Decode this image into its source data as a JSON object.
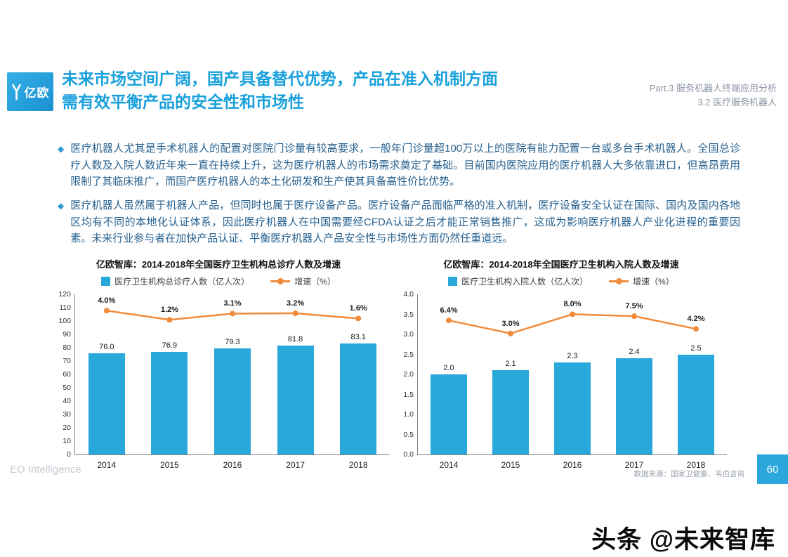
{
  "page": {
    "logo_text": "亿欧",
    "title_line1": "未来市场空间广阔，国产具备替代优势，产品在准入机制方面",
    "title_line2": "需有效平衡产品的安全性和市场性",
    "part_line1": "Part.3 服务机器人终端应用分析",
    "part_line2": "3.2 医疗服务机器人",
    "bullets": [
      "医疗机器人尤其是手术机器人的配置对医院门诊量有较高要求，一般年门诊量超100万以上的医院有能力配置一台或多台手术机器人。全国总诊疗人数及入院人数近年来一直在持续上升，这为医疗机器人的市场需求奠定了基础。目前国内医院应用的医疗机器人大多依靠进口，但高昂费用限制了其临床推广，而国产医疗机器人的本土化研发和生产使其具备高性价比优势。",
      "医疗机器人虽然属于机器人产品，但同时也属于医疗设备产品。医疗设备产品面临严格的准入机制，医疗设备安全认证在国际、国内及国内各地区均有不同的本地化认证体系，因此医疗机器人在中国需要经CFDA认证之后才能正常销售推广，这成为影响医疗机器人产业化进程的重要因素。未来行业参与者在加快产品认证、平衡医疗机器人产品安全性与市场性方面仍然任重道远。"
    ],
    "footer_left": "EO Intelligence",
    "source": "数据来源：国家卫健委、韦伯咨询",
    "page_number": "60",
    "watermark": "头条 @未来智库"
  },
  "colors": {
    "accent_blue": "#18a0dc",
    "bar": "#29a8db",
    "line": "#f08b3c",
    "body_text": "#27618f",
    "header_info": "#8b95a5"
  },
  "chart_data": [
    {
      "type": "bar",
      "title": "亿欧智库：2014-2018年全国医疗卫生机构总诊疗人数及增速",
      "categories": [
        "2014",
        "2015",
        "2016",
        "2017",
        "2018"
      ],
      "series": [
        {
          "name": "医疗卫生机构总诊疗人数（亿人次）",
          "type": "bar",
          "values": [
            76.0,
            76.9,
            79.3,
            81.8,
            83.1
          ],
          "labels": [
            "76.0",
            "76.9",
            "79.3",
            "81.8",
            "83.1"
          ]
        },
        {
          "name": "增速（%）",
          "type": "line",
          "values": [
            4.0,
            1.2,
            3.1,
            3.2,
            1.6
          ],
          "labels": [
            "4.0%",
            "1.2%",
            "3.1%",
            "3.2%",
            "1.6%"
          ]
        }
      ],
      "xlabel": "",
      "ylabel": "",
      "ylim": [
        0,
        120
      ],
      "ytick_step": 10,
      "ytick_decimals": 0,
      "line_ylim": [
        -40,
        9
      ],
      "grid": false,
      "legend_position": "top"
    },
    {
      "type": "bar",
      "title": "亿欧智库：2014-2018年全国医疗卫生机构入院人数及增速",
      "categories": [
        "2014",
        "2015",
        "2016",
        "2017",
        "2018"
      ],
      "series": [
        {
          "name": "医疗卫生机构入院人数（亿人次）",
          "type": "bar",
          "values": [
            2.0,
            2.1,
            2.3,
            2.4,
            2.5
          ],
          "labels": [
            "2.0",
            "2.1",
            "2.3",
            "2.4",
            "2.5"
          ]
        },
        {
          "name": "增速（%）",
          "type": "line",
          "values": [
            6.4,
            3.0,
            8.0,
            7.5,
            4.2
          ],
          "labels": [
            "6.4%",
            "3.0%",
            "8.0%",
            "7.5%",
            "4.2%"
          ]
        }
      ],
      "xlabel": "",
      "ylabel": "",
      "ylim": [
        0,
        4.0
      ],
      "ytick_step": 0.5,
      "ytick_decimals": 1,
      "line_ylim": [
        -28.5,
        13.2
      ],
      "grid": false,
      "legend_position": "top"
    }
  ]
}
